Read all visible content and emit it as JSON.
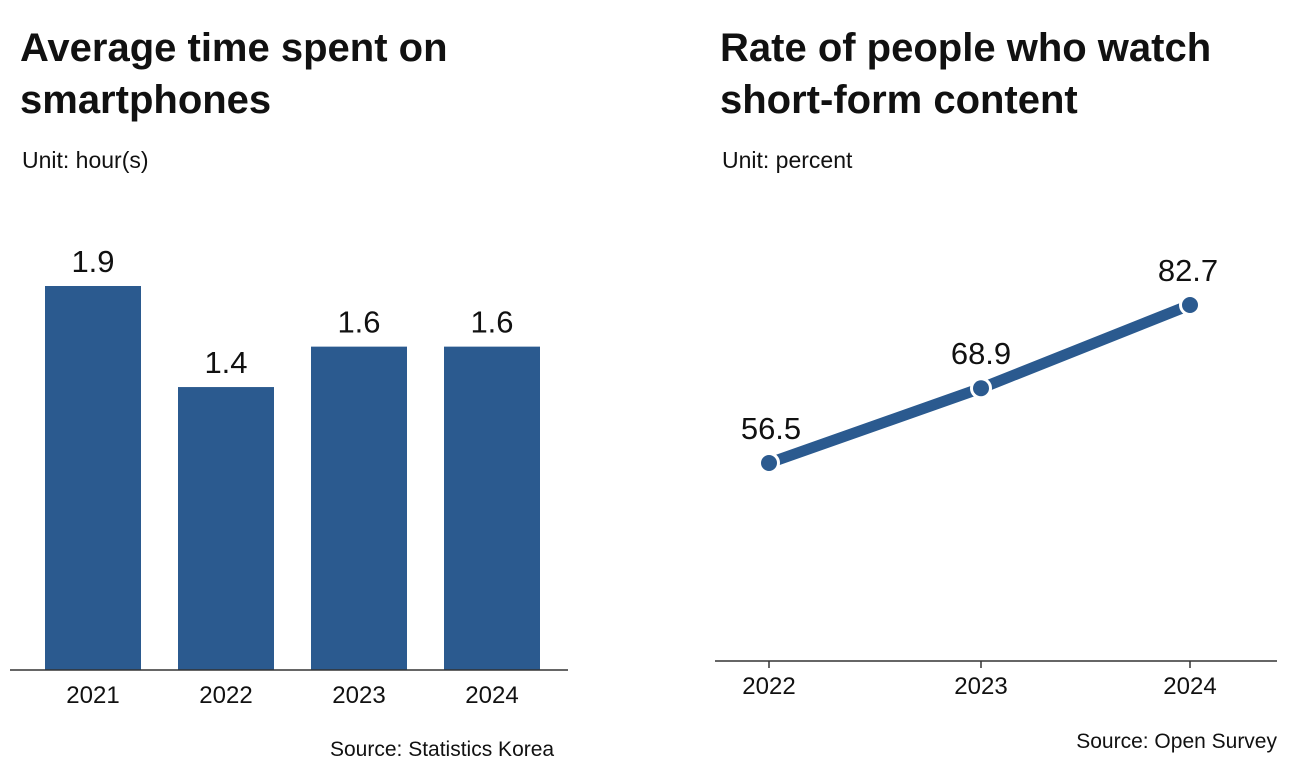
{
  "left_chart": {
    "title": "Average time spent on smartphones",
    "unit": "Unit: hour(s)",
    "source": "Source: Statistics Korea",
    "color": "#2b5a8f"
  },
  "right_chart": {
    "title": "Rate of people who watch short-form content",
    "unit": "Unit: percent",
    "source": "Source: Open Survey",
    "color": "#2b5a8f"
  },
  "chart_data": [
    {
      "type": "bar",
      "title": "Average time spent on smartphones",
      "categories": [
        "2021",
        "2022",
        "2023",
        "2024"
      ],
      "values": [
        1.9,
        1.4,
        1.6,
        1.6
      ],
      "value_labels": [
        "1.9",
        "1.4",
        "1.6",
        "1.6"
      ],
      "ylim": [
        0,
        1.9
      ],
      "grid": false,
      "legend": "none"
    },
    {
      "type": "line",
      "title": "Rate of people who watch short-form content",
      "x": [
        "2022",
        "2023",
        "2024"
      ],
      "values": [
        56.5,
        68.9,
        82.7
      ],
      "value_labels": [
        "56.5",
        "68.9",
        "82.7"
      ],
      "ylim": [
        30,
        90
      ],
      "grid": false,
      "legend": "none"
    }
  ]
}
